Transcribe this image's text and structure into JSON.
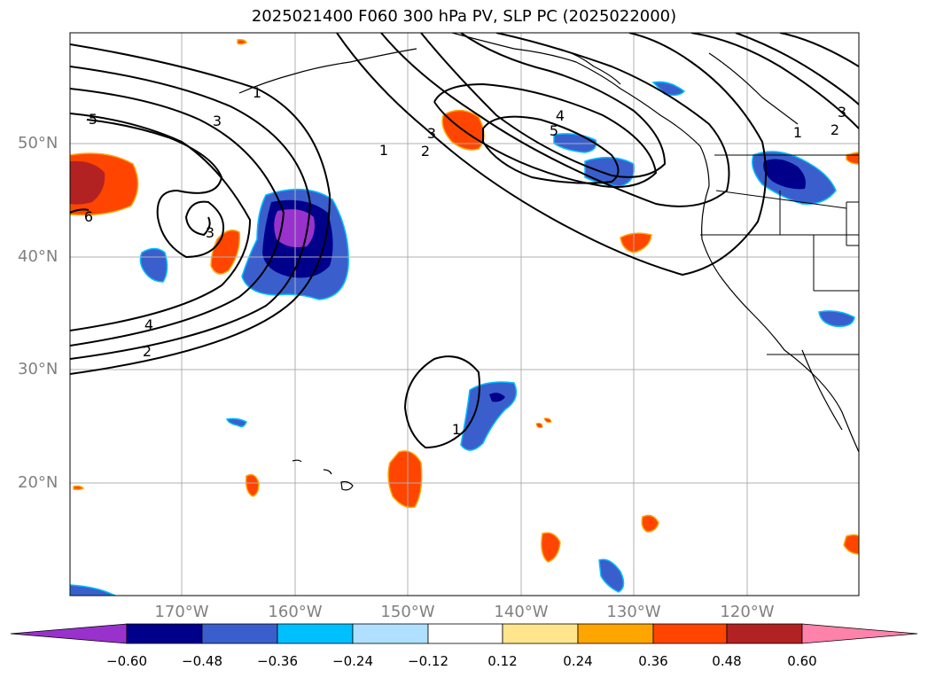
{
  "title": "2025021400 F060 300 hPa PV, SLP PC (2025022000)",
  "lat_labels": [
    "50°N",
    "40°N",
    "30°N",
    "20°N"
  ],
  "lon_labels": [
    "170°W",
    "160°W",
    "150°W",
    "140°W",
    "130°W",
    "120°W"
  ],
  "colorbar": {
    "ticks": [
      "−0.60",
      "−0.48",
      "−0.36",
      "−0.24",
      "−0.12",
      "0.12",
      "0.24",
      "0.36",
      "0.48",
      "0.60"
    ],
    "colors": [
      "#9932CC",
      "#00008B",
      "#3A5FCD",
      "#00BFFF",
      "#B0E0FF",
      "#FFFFFF",
      "#FFE68C",
      "#FFA500",
      "#FF4500",
      "#B22222",
      "#FF82AB"
    ]
  },
  "contour_labels": [
    "5",
    "3",
    "1",
    "6",
    "3",
    "4",
    "2",
    "3",
    "2",
    "1",
    "4",
    "5",
    "1",
    "3",
    "2",
    "1"
  ],
  "colors": {
    "contour": "#000000",
    "coast": "#000000",
    "grid": "#b0b0b0",
    "axis_label": "#808080"
  }
}
